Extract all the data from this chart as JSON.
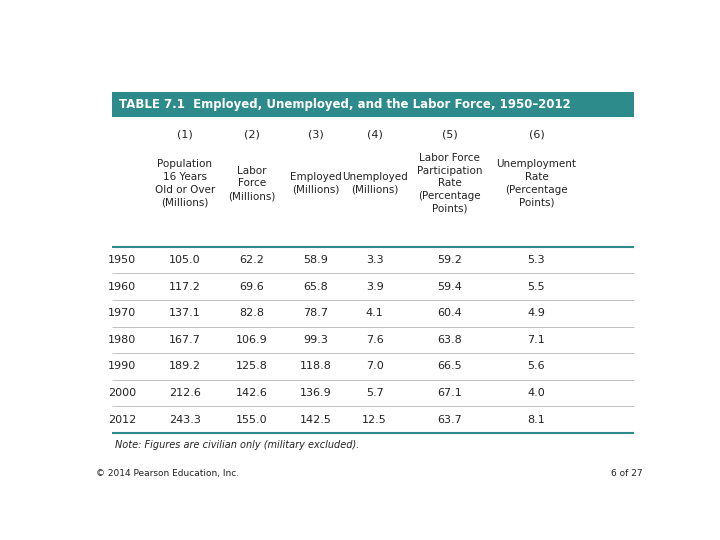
{
  "title": "TABLE 7.1  Employed, Unemployed, and the Labor Force, 1950–2012",
  "title_bg_color": "#2e8b8b",
  "title_text_color": "#ffffff",
  "col_numbers": [
    "(1)",
    "(2)",
    "(3)",
    "(4)",
    "(5)",
    "(6)"
  ],
  "col_headers": [
    "Population\n16 Years\nOld or Over\n(Millions)",
    "Labor\nForce\n(Millions)",
    "Employed\n(Millions)",
    "Unemployed\n(Millions)",
    "Labor Force\nParticipation\nRate\n(Percentage\nPoints)",
    "Unemployment\nRate\n(Percentage\nPoints)"
  ],
  "row_labels": [
    "1950",
    "1960",
    "1970",
    "1980",
    "1990",
    "2000",
    "2012"
  ],
  "data": [
    [
      105.0,
      62.2,
      58.9,
      3.3,
      59.2,
      5.3
    ],
    [
      117.2,
      69.6,
      65.8,
      3.9,
      59.4,
      5.5
    ],
    [
      137.1,
      82.8,
      78.7,
      4.1,
      60.4,
      4.9
    ],
    [
      167.7,
      106.9,
      99.3,
      7.6,
      63.8,
      7.1
    ],
    [
      189.2,
      125.8,
      118.8,
      7.0,
      66.5,
      5.6
    ],
    [
      212.6,
      142.6,
      136.9,
      5.7,
      67.1,
      4.0
    ],
    [
      243.3,
      155.0,
      142.5,
      12.5,
      63.7,
      8.1
    ]
  ],
  "note": "Note: Figures are civilian only (military excluded).",
  "footer_left": "© 2014 Pearson Education, Inc.",
  "footer_right": "6 of 27",
  "bg_color": "#ffffff",
  "header_line_color": "#2e8b8b",
  "row_line_color": "#aaaaaa",
  "text_color": "#222222",
  "teal_color": "#2e8b8b"
}
